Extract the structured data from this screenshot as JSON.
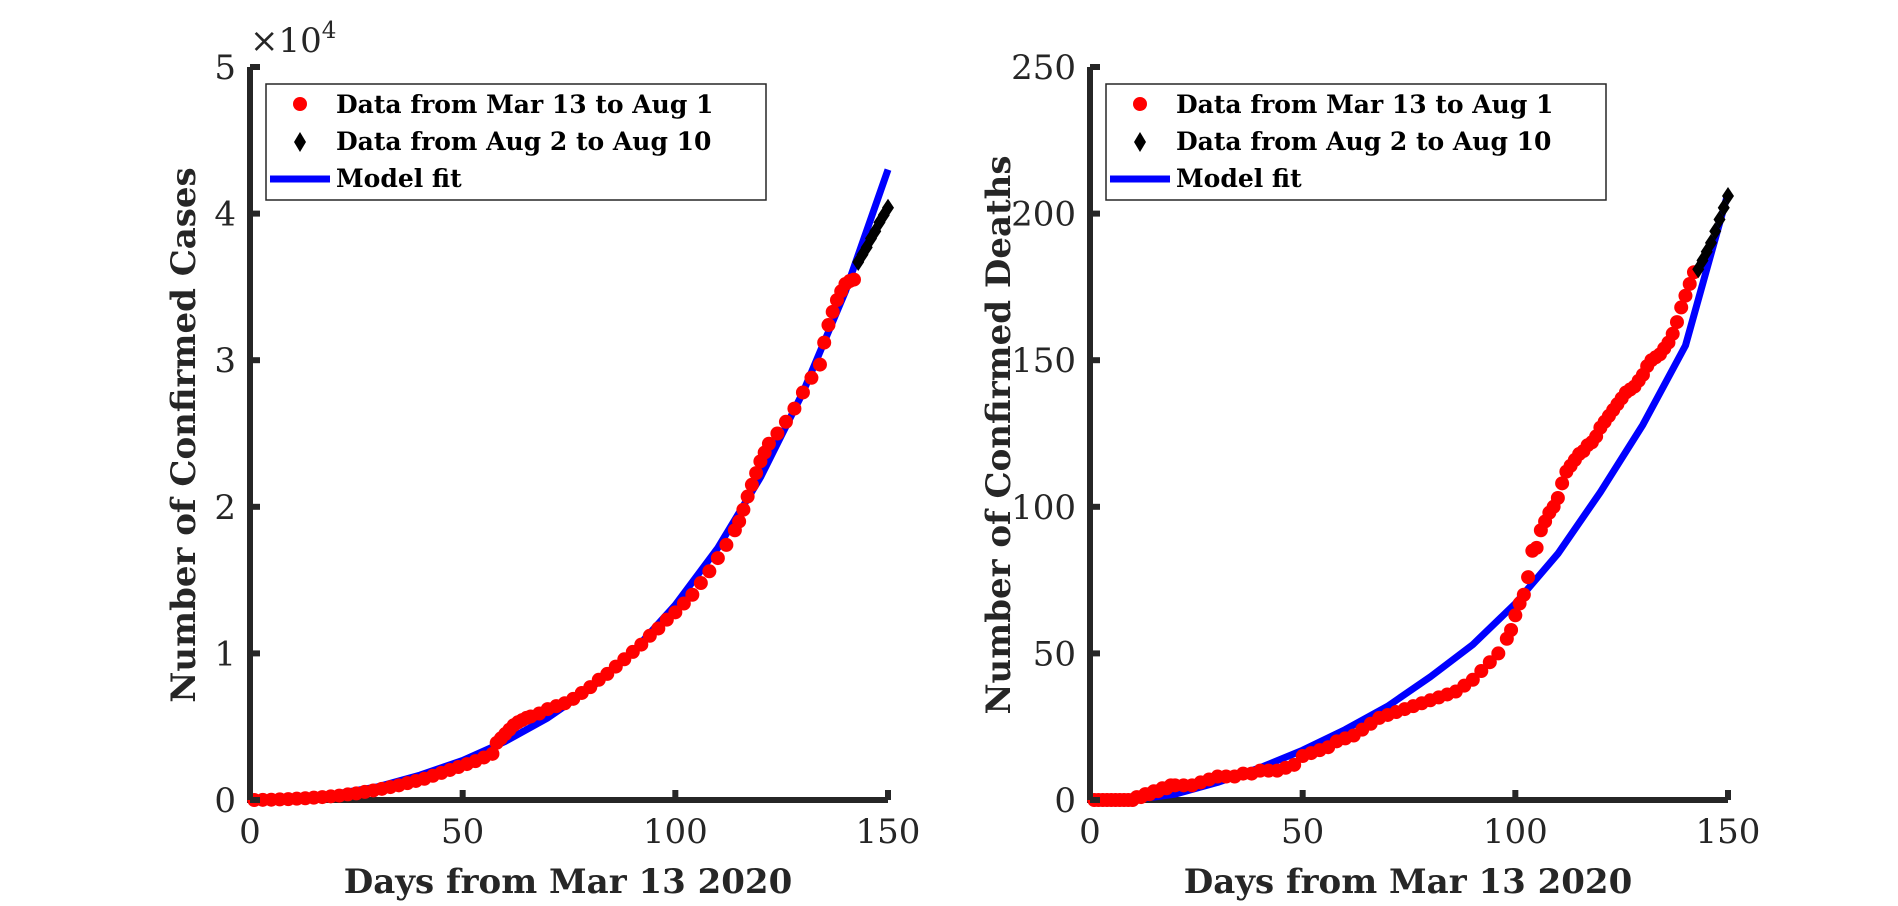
{
  "colors": {
    "fit": "#0000ff",
    "early": "#ff0000",
    "late": "#000000",
    "axis": "#262626"
  },
  "chart_data": [
    {
      "type": "scatter",
      "panel": "left",
      "xlabel": "Days from Mar 13 2020",
      "ylabel": "Number of Confirmed Cases",
      "xlim": [
        0,
        150
      ],
      "ylim": [
        0,
        50000
      ],
      "xticks": [
        0,
        50,
        100,
        150
      ],
      "yticks": [
        0,
        1,
        2,
        3,
        4,
        5
      ],
      "y_exponent_prefix": "×10",
      "y_exponent": "4",
      "y_multiplier": 10000,
      "legend": [
        "Data from Mar 13 to Aug 1",
        "Data from Aug 2 to Aug 10",
        "Model fit"
      ],
      "model_fit": {
        "x": [
          1,
          10,
          20,
          30,
          40,
          50,
          60,
          70,
          80,
          90,
          100,
          110,
          120,
          130,
          140,
          150
        ],
        "y": [
          0,
          100,
          400,
          900,
          1700,
          2700,
          4000,
          5600,
          7600,
          10100,
          13300,
          17200,
          22000,
          27800,
          34700,
          43000
        ]
      },
      "series": [
        {
          "name": "Data from Mar 13 to Aug 1",
          "marker": "circle",
          "x": [
            1,
            3,
            5,
            7,
            9,
            11,
            13,
            15,
            17,
            19,
            21,
            23,
            25,
            27,
            29,
            31,
            33,
            35,
            37,
            39,
            41,
            43,
            45,
            47,
            49,
            51,
            53,
            55,
            57,
            58,
            59,
            60,
            61,
            62,
            63,
            64,
            65,
            66,
            68,
            70,
            72,
            74,
            76,
            78,
            80,
            82,
            84,
            86,
            88,
            90,
            92,
            94,
            96,
            98,
            100,
            102,
            104,
            106,
            108,
            110,
            112,
            114,
            115,
            116,
            117,
            118,
            119,
            120,
            121,
            122,
            124,
            126,
            128,
            130,
            132,
            134,
            135,
            136,
            137,
            138,
            139,
            140,
            141,
            142
          ],
          "y": [
            0,
            10,
            20,
            40,
            60,
            90,
            120,
            160,
            200,
            250,
            300,
            380,
            450,
            550,
            650,
            760,
            880,
            1000,
            1150,
            1300,
            1450,
            1650,
            1850,
            2050,
            2250,
            2450,
            2650,
            2900,
            3150,
            3900,
            4200,
            4500,
            4800,
            5100,
            5300,
            5450,
            5600,
            5700,
            5900,
            6200,
            6400,
            6600,
            6900,
            7300,
            7700,
            8200,
            8600,
            9100,
            9600,
            10100,
            10600,
            11200,
            11700,
            12300,
            12800,
            13400,
            14000,
            14800,
            15600,
            16500,
            17400,
            18400,
            19000,
            19800,
            20700,
            21500,
            22300,
            23100,
            23700,
            24300,
            25000,
            25800,
            26700,
            27800,
            28800,
            29700,
            31200,
            32400,
            33300,
            34100,
            34700,
            35200,
            35400,
            35500
          ]
        },
        {
          "name": "Data from Aug 2 to Aug 10",
          "marker": "diamond",
          "x": [
            143,
            144,
            145,
            146,
            147,
            148,
            149,
            150
          ],
          "y": [
            36700,
            37200,
            37700,
            38300,
            38800,
            39400,
            39900,
            40400
          ]
        }
      ]
    },
    {
      "type": "scatter",
      "panel": "right",
      "xlabel": "Days from Mar 13 2020",
      "ylabel": "Number of Confirmed Deaths",
      "xlim": [
        0,
        150
      ],
      "ylim": [
        0,
        250
      ],
      "xticks": [
        0,
        50,
        100,
        150
      ],
      "yticks": [
        0,
        50,
        100,
        150,
        200,
        250
      ],
      "legend": [
        "Data from Mar 13 to Aug 1",
        "Data from Aug 2 to Aug 10",
        "Model fit"
      ],
      "model_fit": {
        "x": [
          10,
          20,
          30,
          40,
          50,
          60,
          70,
          80,
          90,
          100,
          110,
          120,
          130,
          140,
          150
        ],
        "y": [
          0,
          2,
          6,
          11,
          17,
          24,
          32,
          42,
          53,
          67,
          84,
          105,
          128,
          155,
          207
        ]
      },
      "series": [
        {
          "name": "Data from Mar 13 to Aug 1",
          "marker": "circle",
          "x": [
            1,
            2,
            3,
            4,
            5,
            6,
            7,
            8,
            9,
            10,
            11,
            12,
            13,
            14,
            15,
            16,
            17,
            18,
            19,
            20,
            22,
            24,
            26,
            28,
            30,
            32,
            34,
            36,
            38,
            40,
            42,
            44,
            46,
            48,
            50,
            52,
            54,
            56,
            58,
            60,
            62,
            64,
            66,
            68,
            70,
            72,
            74,
            76,
            78,
            80,
            82,
            84,
            86,
            88,
            90,
            92,
            94,
            96,
            98,
            99,
            100,
            101,
            102,
            103,
            104,
            105,
            106,
            107,
            108,
            109,
            110,
            111,
            112,
            113,
            114,
            115,
            116,
            117,
            118,
            119,
            120,
            121,
            122,
            123,
            124,
            125,
            126,
            127,
            128,
            129,
            130,
            131,
            132,
            133,
            134,
            135,
            136,
            137,
            138,
            139,
            140,
            141,
            142
          ],
          "y": [
            0,
            0,
            0,
            0,
            0,
            0,
            0,
            0,
            0,
            0,
            1,
            1,
            2,
            2,
            3,
            3,
            4,
            4,
            5,
            5,
            5,
            5,
            6,
            7,
            8,
            8,
            8,
            9,
            9,
            10,
            10,
            10,
            11,
            12,
            15,
            16,
            17,
            18,
            20,
            21,
            22,
            24,
            26,
            28,
            29,
            30,
            31,
            32,
            33,
            34,
            35,
            36,
            37,
            39,
            41,
            44,
            47,
            50,
            55,
            58,
            63,
            67,
            70,
            76,
            85,
            86,
            92,
            95,
            98,
            100,
            103,
            108,
            112,
            114,
            116,
            118,
            119,
            121,
            122,
            124,
            127,
            129,
            131,
            133,
            135,
            137,
            139,
            140,
            141,
            143,
            145,
            148,
            150,
            151,
            152,
            154,
            156,
            159,
            163,
            168,
            172,
            176,
            180
          ]
        },
        {
          "name": "Data from Aug 2 to Aug 10",
          "marker": "diamond",
          "x": [
            143,
            144,
            145,
            146,
            147,
            148,
            149,
            150
          ],
          "y": [
            181,
            184,
            187,
            190,
            194,
            198,
            202,
            206
          ]
        }
      ]
    }
  ]
}
